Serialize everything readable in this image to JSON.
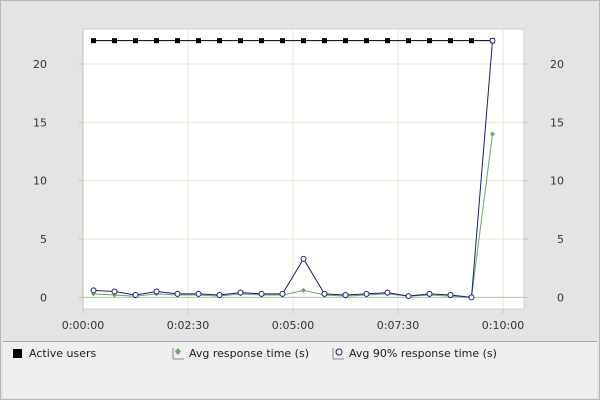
{
  "chart_data": {
    "type": "line",
    "title": "",
    "xlabel": "",
    "ylabel": "",
    "x_tick_labels": [
      "0:00:00",
      "0:02:30",
      "0:05:00",
      "0:07:30",
      "0:10:00"
    ],
    "x_tick_seconds": [
      0,
      150,
      300,
      450,
      600
    ],
    "xlim_seconds": [
      0,
      630
    ],
    "left_axis": {
      "ylim": [
        -1,
        23
      ],
      "ticks": [
        0,
        5,
        10,
        15,
        20
      ]
    },
    "right_axis": {
      "ylim": [
        -1,
        23
      ],
      "ticks": [
        0,
        5,
        10,
        15,
        20
      ]
    },
    "grid": true,
    "legend_position": "bottom",
    "x_seconds": [
      15,
      45,
      75,
      105,
      135,
      165,
      195,
      225,
      255,
      285,
      315,
      345,
      375,
      405,
      435,
      465,
      495,
      525,
      555,
      585
    ],
    "series": [
      {
        "name": "Active users",
        "axis": "left",
        "color": "#000000",
        "marker": "filled-square",
        "values": [
          22,
          22,
          22,
          22,
          22,
          22,
          22,
          22,
          22,
          22,
          22,
          22,
          22,
          22,
          22,
          22,
          22,
          22,
          22,
          22
        ]
      },
      {
        "name": "Avg response time (s)",
        "axis": "right",
        "color": "#66a866",
        "marker": "diamond",
        "values": [
          0.3,
          0.2,
          0.1,
          0.3,
          0.2,
          0.2,
          0.1,
          0.3,
          0.2,
          0.2,
          0.6,
          0.2,
          0.1,
          0.2,
          0.3,
          0.1,
          0.2,
          0.1,
          0.0,
          14.0
        ]
      },
      {
        "name": "Avg 90% response time (s)",
        "axis": "right",
        "color": "#1c1c7a",
        "marker": "open-circle",
        "values": [
          0.6,
          0.5,
          0.2,
          0.5,
          0.3,
          0.3,
          0.2,
          0.4,
          0.3,
          0.3,
          3.3,
          0.3,
          0.2,
          0.3,
          0.4,
          0.1,
          0.3,
          0.2,
          0.0,
          22.0
        ]
      }
    ]
  },
  "colors": {
    "plot_background": "#ffffff",
    "grid": "#e4e8d2",
    "axis": "#b8c6a8"
  }
}
